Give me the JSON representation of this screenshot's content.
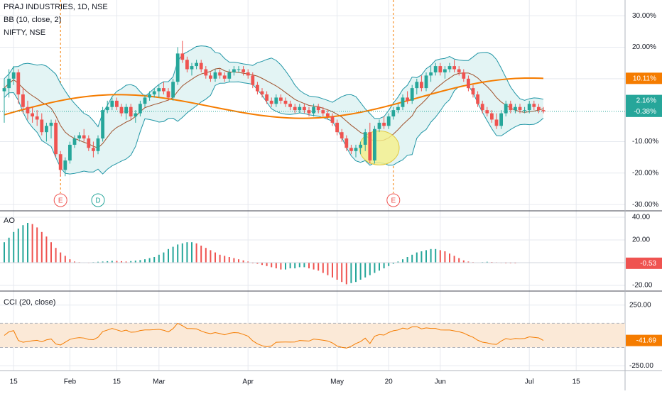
{
  "header": {
    "symbol_line": "PRAJ INDUSTRIES, 1D, NSE",
    "bb_line": "BB (10, close, 2)",
    "compare_line": "NIFTY, NSE"
  },
  "colors": {
    "up": "#26a69a",
    "down": "#ef5350",
    "bb_band": "#2196a6",
    "bb_fill": "#e3f4f4",
    "bb_basis": "#a0522d",
    "nifty": "#f57c00",
    "ao_up": "#26a69a",
    "ao_down": "#ef5350",
    "cci": "#f57c00",
    "cci_band": "#fbe9d7",
    "grid": "#e6e9ef",
    "event_line": "#f57c00",
    "highlight": "#f5f08a"
  },
  "chart_data": [
    {
      "type": "candlestick",
      "name": "main",
      "ylim": [
        -32,
        35
      ],
      "y_ticks": [
        "30.00%",
        "20.00%",
        "10.00%",
        "-10.00%",
        "-20.00%",
        "-30.00%"
      ],
      "y_tick_values": [
        30,
        20,
        10,
        -10,
        -20,
        -30
      ],
      "x_ticks": [
        "15",
        "Feb",
        "15",
        "Mar",
        "Apr",
        "May",
        "20",
        "Jun",
        "Jul",
        "15"
      ],
      "x_tick_index": [
        2,
        14,
        24,
        33,
        52,
        71,
        82,
        93,
        112,
        122
      ],
      "badges": [
        {
          "text": "10.11%",
          "value": 10.11,
          "color": "#f57c00"
        },
        {
          "text": "2.16%",
          "value": 2.16,
          "color": "#26a69a"
        },
        {
          "text": "-0.38%",
          "value": -0.38,
          "color": "#26a69a"
        }
      ],
      "events": [
        {
          "label": "E",
          "index": 12,
          "color": "#ef5350"
        },
        {
          "label": "D",
          "index": 20,
          "color": "#26a69a"
        },
        {
          "label": "E",
          "index": 83,
          "color": "#ef5350"
        }
      ],
      "highlight_index": 80,
      "candles": [
        [
          6,
          10,
          -4,
          7
        ],
        [
          7,
          13,
          4,
          10
        ],
        [
          10,
          14,
          8,
          12
        ],
        [
          12,
          13,
          2,
          5
        ],
        [
          5,
          7,
          -1,
          1
        ],
        [
          1,
          3,
          -3,
          -1
        ],
        [
          -1,
          1,
          -4,
          -2
        ],
        [
          -2,
          0,
          -5,
          -3
        ],
        [
          -3,
          -1,
          -8,
          -7
        ],
        [
          -7,
          -4,
          -10,
          -5
        ],
        [
          -5,
          -3,
          -9,
          -4
        ],
        [
          -4,
          -3,
          -15,
          -14
        ],
        [
          -14,
          -13,
          -21,
          -19
        ],
        [
          -19,
          -15,
          -21,
          -16
        ],
        [
          -16,
          -10,
          -17,
          -11
        ],
        [
          -11,
          -8,
          -12,
          -9
        ],
        [
          -9,
          -7,
          -10,
          -8
        ],
        [
          -8,
          -6,
          -10,
          -9
        ],
        [
          -9,
          -8,
          -13,
          -12
        ],
        [
          -12,
          -10,
          -15,
          -13
        ],
        [
          -13,
          -8,
          -14,
          -9
        ],
        [
          -9,
          1,
          -10,
          0
        ],
        [
          0,
          3,
          -1,
          1
        ],
        [
          1,
          4,
          0,
          3
        ],
        [
          3,
          4,
          0,
          1
        ],
        [
          1,
          2,
          -2,
          -1
        ],
        [
          -1,
          2,
          -3,
          1
        ],
        [
          1,
          2,
          -3,
          -2
        ],
        [
          -2,
          0,
          -4,
          -1
        ],
        [
          -1,
          3,
          -2,
          2
        ],
        [
          2,
          5,
          1,
          4
        ],
        [
          4,
          6,
          3,
          5
        ],
        [
          5,
          7,
          4,
          6
        ],
        [
          6,
          8,
          4,
          7
        ],
        [
          7,
          9,
          5,
          6
        ],
        [
          6,
          7,
          3,
          4
        ],
        [
          4,
          10,
          3,
          9
        ],
        [
          9,
          20,
          8,
          18
        ],
        [
          18,
          22,
          15,
          16
        ],
        [
          16,
          17,
          12,
          13
        ],
        [
          13,
          15,
          11,
          14
        ],
        [
          14,
          16,
          13,
          15
        ],
        [
          15,
          16,
          12,
          13
        ],
        [
          13,
          14,
          10,
          11
        ],
        [
          11,
          12,
          9,
          10
        ],
        [
          10,
          13,
          9,
          12
        ],
        [
          12,
          13,
          10,
          11
        ],
        [
          11,
          12,
          9,
          10
        ],
        [
          10,
          13,
          9,
          12
        ],
        [
          12,
          14,
          11,
          13
        ],
        [
          13,
          14,
          12,
          13
        ],
        [
          13,
          14,
          11,
          12
        ],
        [
          12,
          13,
          10,
          11
        ],
        [
          11,
          12,
          7,
          8
        ],
        [
          8,
          9,
          5,
          6
        ],
        [
          6,
          7,
          4,
          5
        ],
        [
          5,
          6,
          2,
          3
        ],
        [
          3,
          4,
          1,
          2
        ],
        [
          2,
          5,
          1,
          4
        ],
        [
          4,
          5,
          2,
          3
        ],
        [
          3,
          4,
          1,
          2
        ],
        [
          2,
          3,
          0,
          1
        ],
        [
          1,
          2,
          -1,
          0
        ],
        [
          0,
          2,
          -1,
          1
        ],
        [
          1,
          2,
          -1,
          0
        ],
        [
          0,
          1,
          -2,
          -1
        ],
        [
          -1,
          2,
          -2,
          1
        ],
        [
          1,
          2,
          -1,
          0
        ],
        [
          0,
          1,
          -2,
          -1
        ],
        [
          -1,
          0,
          -3,
          -2
        ],
        [
          -2,
          -1,
          -5,
          -4
        ],
        [
          -4,
          -3,
          -8,
          -7
        ],
        [
          -7,
          -6,
          -10,
          -9
        ],
        [
          -9,
          -8,
          -13,
          -12
        ],
        [
          -12,
          -11,
          -14,
          -13
        ],
        [
          -13,
          -11,
          -15,
          -12
        ],
        [
          -12,
          -10,
          -14,
          -11
        ],
        [
          -11,
          -6,
          -13,
          -7
        ],
        [
          -7,
          -4,
          -17,
          -16
        ],
        [
          -16,
          -5,
          -17,
          -6
        ],
        [
          -6,
          -3,
          -7,
          -4
        ],
        [
          -4,
          -2,
          -6,
          -5
        ],
        [
          -5,
          -1,
          -6,
          -2
        ],
        [
          -2,
          1,
          -3,
          0
        ],
        [
          0,
          2,
          -1,
          1
        ],
        [
          1,
          5,
          0,
          4
        ],
        [
          4,
          6,
          2,
          3
        ],
        [
          3,
          8,
          2,
          7
        ],
        [
          7,
          10,
          5,
          9
        ],
        [
          9,
          11,
          6,
          7
        ],
        [
          7,
          12,
          6,
          11
        ],
        [
          11,
          14,
          9,
          12
        ],
        [
          12,
          15,
          11,
          14
        ],
        [
          14,
          15,
          11,
          12
        ],
        [
          12,
          14,
          10,
          13
        ],
        [
          13,
          15,
          12,
          14
        ],
        [
          14,
          16,
          12,
          13
        ],
        [
          13,
          14,
          11,
          12
        ],
        [
          12,
          13,
          9,
          10
        ],
        [
          10,
          11,
          6,
          7
        ],
        [
          7,
          8,
          4,
          5
        ],
        [
          5,
          6,
          1,
          2
        ],
        [
          2,
          3,
          -1,
          0
        ],
        [
          0,
          1,
          -2,
          -1
        ],
        [
          -1,
          0,
          -4,
          -3
        ],
        [
          -3,
          -1,
          -6,
          -5
        ],
        [
          -5,
          0,
          -6,
          -1
        ],
        [
          -1,
          3,
          -2,
          2
        ],
        [
          2,
          3,
          -1,
          0
        ],
        [
          0,
          2,
          -1,
          1
        ],
        [
          1,
          2,
          -1,
          0
        ],
        [
          0,
          1,
          -1,
          0
        ],
        [
          0,
          3,
          -1,
          2
        ],
        [
          2,
          3,
          0,
          1
        ],
        [
          1,
          2,
          -1,
          0
        ],
        [
          0,
          1,
          -1,
          -0.38
        ]
      ]
    },
    {
      "type": "bar",
      "name": "AO",
      "label": "AO",
      "ylim": [
        -25,
        45
      ],
      "y_ticks": [
        "40.00",
        "20.00",
        "-20.00"
      ],
      "y_tick_values": [
        40,
        20,
        -20
      ],
      "badge": {
        "text": "-0.53",
        "value": -0.53,
        "color": "#ef5350"
      },
      "values": [
        18,
        22,
        27,
        30,
        33,
        35,
        34,
        31,
        27,
        23,
        18,
        13,
        9,
        6,
        3,
        1,
        0.5,
        0.3,
        0.2,
        0.5,
        0.8,
        1,
        1.3,
        1.6,
        1.5,
        1.3,
        1,
        1.4,
        1.8,
        2.3,
        3,
        4,
        5,
        7,
        9,
        12,
        14,
        16,
        17,
        18,
        18,
        17,
        15,
        13,
        11,
        9,
        7,
        6,
        5,
        4,
        3,
        2,
        1,
        0,
        -1,
        -2,
        -3,
        -4,
        -5,
        -6,
        -6,
        -5,
        -5,
        -4,
        -4,
        -5,
        -6,
        -7,
        -9,
        -11,
        -13,
        -15,
        -17,
        -19,
        -18,
        -17,
        -15,
        -13,
        -11,
        -9,
        -7,
        -5,
        -3,
        -1,
        1,
        3,
        5,
        7,
        9,
        10,
        11,
        12,
        12,
        11,
        10,
        8,
        6,
        4,
        2,
        1,
        0.5,
        0.3,
        0.5,
        0.8,
        0.6,
        0.4,
        0.2,
        -0.2,
        -0.4,
        -0.53
      ]
    },
    {
      "type": "line",
      "name": "CCI",
      "label": "CCI (20, close)",
      "ylim": [
        -290,
        360
      ],
      "y_ticks": [
        "250.00",
        "-250.00"
      ],
      "y_tick_values": [
        250,
        -250
      ],
      "band": [
        -100,
        100
      ],
      "badge": {
        "text": "-41.69",
        "value": -41.69,
        "color": "#f57c00"
      }
    }
  ]
}
